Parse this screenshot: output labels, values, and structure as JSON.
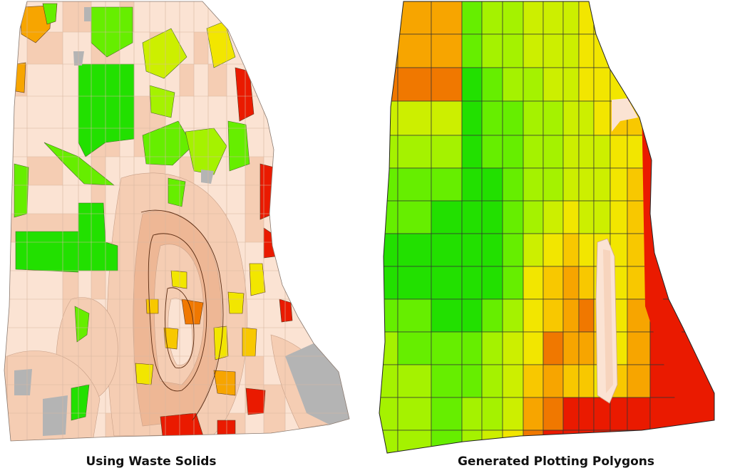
{
  "panels": [
    {
      "id": "left",
      "caption": "Using Waste Solids",
      "method": "waste-solids",
      "rows": 18,
      "cols": 15
    },
    {
      "id": "right",
      "caption": "Generated Plotting Polygons",
      "method": "plotting-polygons",
      "rows": 14,
      "cols": 13
    }
  ],
  "colors": {
    "background": "#ffffff",
    "gridline": "#333333",
    "peach_light": "#fbe3d3",
    "peach": "#f5cdb3",
    "peach_dark": "#eeb795",
    "gray": "#b4b4b4",
    "green": "#22e000",
    "green_light": "#66ee00",
    "lime": "#a5f200",
    "yellow_green": "#ccef00",
    "yellow": "#f2e600",
    "yellow_orange": "#f8c800",
    "orange": "#f7a500",
    "orange_dark": "#f07800",
    "red": "#ea1a00"
  }
}
